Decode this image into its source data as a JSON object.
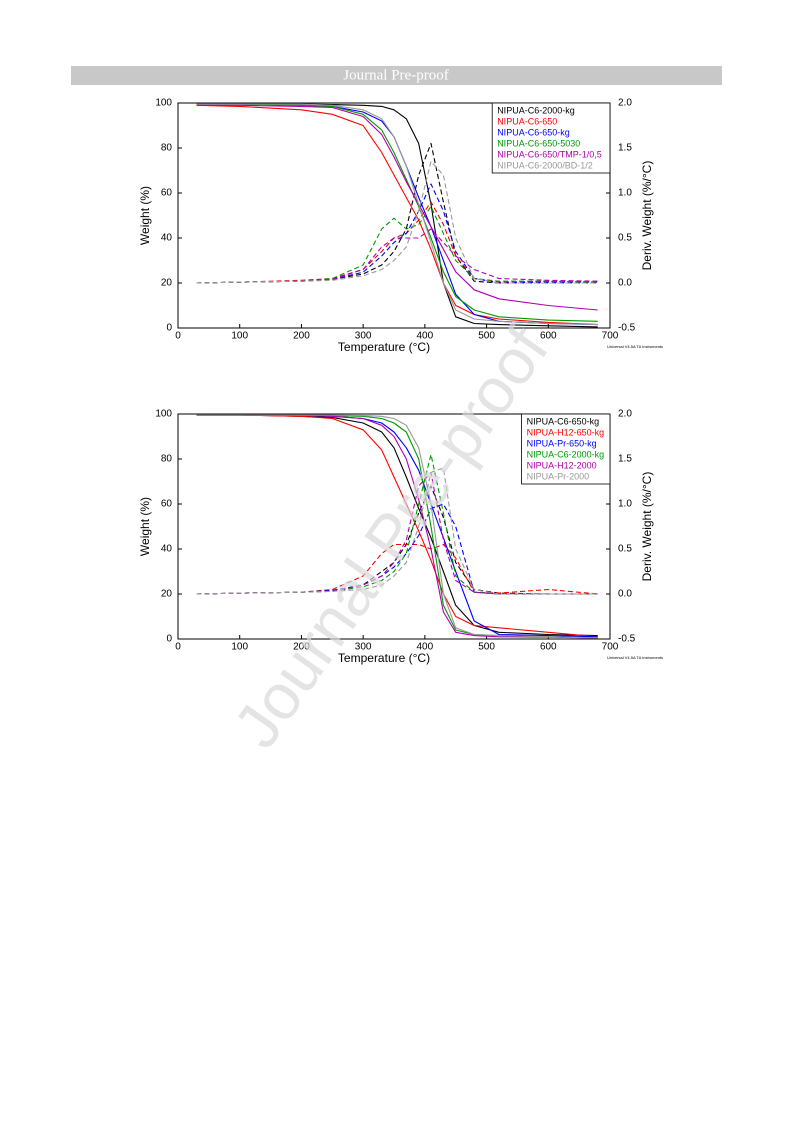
{
  "header": {
    "title": "Journal Pre-proof"
  },
  "watermark": "Journal Pre-proof",
  "chart_data": [
    {
      "type": "line",
      "x_label": "Temperature (°C)",
      "y_label": "Weight (%)",
      "y2_label": "Deriv. Weight (%/°C)",
      "credit": "Universal V4.5A TA Instruments",
      "xlim": [
        0,
        700
      ],
      "xticks": [
        0,
        100,
        200,
        300,
        400,
        500,
        600,
        700
      ],
      "ylim": [
        0,
        100
      ],
      "yticks": [
        0,
        20,
        40,
        60,
        80,
        100
      ],
      "y2lim": [
        -0.5,
        2.0
      ],
      "y2ticks": [
        -0.5,
        {
          "value": 0,
          "label": "0.0"
        },
        0.5,
        {
          "value": 1,
          "label": "1.0"
        },
        1.5,
        {
          "value": 2,
          "label": "2.0"
        }
      ],
      "x": [
        30,
        100,
        200,
        250,
        300,
        330,
        350,
        370,
        390,
        410,
        430,
        450,
        480,
        520,
        600,
        680
      ],
      "series": [
        {
          "name": "NIPUA-C6-2000-kg",
          "color": "#000000",
          "values": [
            99.5,
            99.5,
            99.5,
            99.3,
            99,
            98.5,
            97,
            93,
            82,
            55,
            20,
            5,
            2,
            1.5,
            1,
            0.5
          ],
          "deriv_values": [
            0,
            0.01,
            0.02,
            0.04,
            0.1,
            0.2,
            0.35,
            0.6,
            1.2,
            1.55,
            0.9,
            0.3,
            0.02,
            0,
            0,
            0
          ]
        },
        {
          "name": "NIPUA-C6-650",
          "color": "#ff0000",
          "values": [
            99,
            98.5,
            97,
            95,
            90,
            78,
            68,
            58,
            48,
            35,
            20,
            10,
            6,
            4,
            2.5,
            1.5
          ],
          "deriv_values": [
            0,
            0.01,
            0.03,
            0.05,
            0.15,
            0.35,
            0.5,
            0.55,
            0.7,
            0.9,
            0.65,
            0.3,
            0.05,
            0.01,
            0.02,
            0.01
          ]
        },
        {
          "name": "NIPUA-C6-650-kg",
          "color": "#0000ff",
          "values": [
            99.5,
            99.5,
            99,
            98.5,
            96,
            92,
            85,
            72,
            58,
            45,
            30,
            15,
            6,
            3,
            2,
            1.5
          ],
          "deriv_values": [
            0,
            0.01,
            0.02,
            0.04,
            0.12,
            0.3,
            0.45,
            0.55,
            0.8,
            1.1,
            0.8,
            0.35,
            0.05,
            0,
            0.01,
            0.01
          ]
        },
        {
          "name": "NIPUA-C6-650-5030",
          "color": "#009900",
          "values": [
            99.5,
            99.5,
            99,
            98.5,
            95,
            88,
            78,
            66,
            54,
            40,
            25,
            14,
            8,
            5,
            3.5,
            3
          ],
          "deriv_values": [
            0,
            0.01,
            0.02,
            0.05,
            0.2,
            0.6,
            0.72,
            0.6,
            0.65,
            0.85,
            0.55,
            0.25,
            0.05,
            0.02,
            0.02,
            0.01
          ]
        },
        {
          "name": "NIPUA-C6-650/TMP-1/0,5",
          "color": "#b000b0",
          "values": [
            99,
            99,
            98.5,
            98,
            94,
            86,
            76,
            65,
            55,
            45,
            35,
            25,
            17,
            13,
            10,
            8
          ],
          "deriv_values": [
            0,
            0.01,
            0.02,
            0.04,
            0.15,
            0.4,
            0.5,
            0.5,
            0.5,
            0.6,
            0.45,
            0.3,
            0.15,
            0.05,
            0.03,
            0.02
          ]
        },
        {
          "name": "NIPUA-C6-2000/BD-1/2",
          "color": "#999999",
          "values": [
            99.5,
            99.5,
            99.5,
            99,
            97,
            93,
            85,
            72,
            55,
            38,
            20,
            8,
            4,
            3,
            2,
            1.5
          ],
          "deriv_values": [
            0,
            0.01,
            0.02,
            0.03,
            0.08,
            0.15,
            0.25,
            0.4,
            0.8,
            1.35,
            1.2,
            0.5,
            0.05,
            0,
            0,
            0
          ]
        }
      ]
    },
    {
      "type": "line",
      "x_label": "Temperature (°C)",
      "y_label": "Weight (%)",
      "y2_label": "Deriv. Weight (%/°C)",
      "credit": "Universal V4.5A TA Instruments",
      "xlim": [
        0,
        700
      ],
      "xticks": [
        0,
        100,
        200,
        300,
        400,
        500,
        600,
        700
      ],
      "ylim": [
        0,
        100
      ],
      "yticks": [
        0,
        20,
        40,
        60,
        80,
        100
      ],
      "y2lim": [
        -0.5,
        2.0
      ],
      "y2ticks": [
        -0.5,
        {
          "value": 0,
          "label": "0.0"
        },
        0.5,
        {
          "value": 1,
          "label": "1.0"
        },
        1.5,
        {
          "value": 2,
          "label": "2.0"
        }
      ],
      "x": [
        30,
        100,
        200,
        250,
        300,
        330,
        350,
        370,
        390,
        410,
        430,
        450,
        480,
        520,
        600,
        680
      ],
      "series": [
        {
          "name": "NIPUA-C6-650-kg",
          "color": "#000000",
          "values": [
            99.5,
            99.5,
            99,
            98.5,
            96,
            92,
            85,
            72,
            58,
            45,
            30,
            15,
            6,
            3,
            2,
            1.5
          ],
          "deriv_values": [
            0,
            0.01,
            0.02,
            0.04,
            0.1,
            0.25,
            0.35,
            0.55,
            0.9,
            1.2,
            0.85,
            0.35,
            0.05,
            0.01,
            0,
            0
          ]
        },
        {
          "name": "NIPUA-H12-650-kg",
          "color": "#ff0000",
          "values": [
            99.5,
            99.5,
            99,
            98,
            93,
            84,
            72,
            60,
            48,
            35,
            20,
            10,
            6,
            5,
            3,
            1
          ],
          "deriv_values": [
            0,
            0.01,
            0.02,
            0.05,
            0.2,
            0.45,
            0.55,
            0.55,
            0.55,
            0.5,
            0.55,
            0.4,
            0.02,
            0.01,
            0.05,
            0
          ]
        },
        {
          "name": "NIPUA-Pr-650-kg",
          "color": "#0000ff",
          "values": [
            99.5,
            99.5,
            99.5,
            99,
            98,
            96,
            92,
            85,
            75,
            60,
            45,
            30,
            8,
            2,
            1.5,
            1
          ],
          "deriv_values": [
            0,
            0.01,
            0.02,
            0.04,
            0.1,
            0.2,
            0.3,
            0.45,
            0.65,
            0.95,
            1.0,
            0.75,
            0.02,
            0,
            0,
            0
          ]
        },
        {
          "name": "NIPUA-C6-2000-kg",
          "color": "#009900",
          "values": [
            99.5,
            99.5,
            99.5,
            99.3,
            99,
            98,
            96,
            92,
            80,
            50,
            15,
            4,
            2,
            1.5,
            1,
            0.5
          ],
          "deriv_values": [
            0,
            0.01,
            0.02,
            0.03,
            0.08,
            0.15,
            0.25,
            0.45,
            1.0,
            1.55,
            0.9,
            0.2,
            0.02,
            0,
            0,
            0
          ]
        },
        {
          "name": "NIPUA-H12-2000",
          "color": "#b000b0",
          "values": [
            99.5,
            99.5,
            99.5,
            99,
            98,
            95,
            90,
            80,
            62,
            40,
            12,
            3,
            1.5,
            1,
            0.8,
            0.5
          ],
          "deriv_values": [
            0,
            0.01,
            0.02,
            0.03,
            0.1,
            0.2,
            0.35,
            0.6,
            1.2,
            1.35,
            0.6,
            0.15,
            0.02,
            0,
            0,
            0
          ]
        },
        {
          "name": "NIPUA-Pr-2000",
          "color": "#999999",
          "values": [
            99.5,
            99.5,
            99.5,
            99.5,
            99.3,
            99,
            98,
            95,
            85,
            60,
            20,
            5,
            2,
            1.5,
            1,
            0.5
          ],
          "deriv_values": [
            0,
            0.01,
            0.02,
            0.03,
            0.05,
            0.1,
            0.2,
            0.35,
            0.75,
            1.35,
            1.4,
            0.5,
            0.05,
            0,
            0,
            0
          ]
        }
      ]
    }
  ]
}
